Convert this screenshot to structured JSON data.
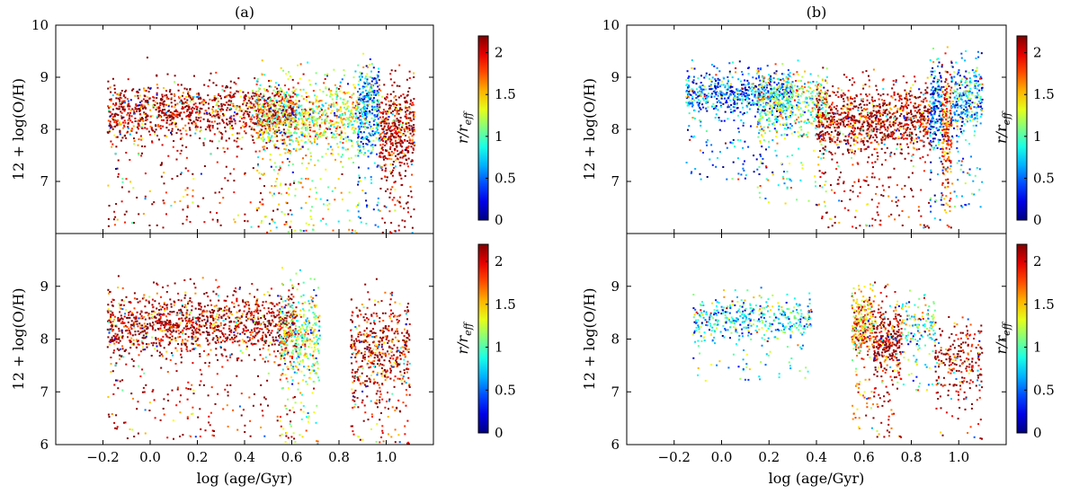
{
  "chart_data": [
    {
      "type": "scatter",
      "panel": "a-top",
      "title": "(a)",
      "xlabel": "",
      "ylabel": "12 + log(O/H)",
      "xlim": [
        -0.4,
        1.2
      ],
      "ylim": [
        6.0,
        10.0
      ],
      "yticks": [
        "7",
        "8",
        "9",
        "10"
      ],
      "xticks": [],
      "colorbar": {
        "label_main": "r/r",
        "label_sub": "eff",
        "range": [
          0,
          2.2
        ],
        "ticks": [
          "0",
          "0.5",
          "1",
          "1.5",
          "2"
        ]
      },
      "clusters": [
        {
          "x_range": [
            -0.18,
            0.62
          ],
          "y_center": 8.35,
          "y_spread": 0.45,
          "tail_low": 6.1,
          "color_value": 2.1,
          "density": 1300
        },
        {
          "x_range": [
            0.45,
            0.88
          ],
          "y_center": 8.25,
          "y_spread": 0.6,
          "tail_low": 6.0,
          "color_value": 1.3,
          "density": 900
        },
        {
          "x_range": [
            0.88,
            0.97
          ],
          "y_center": 8.4,
          "y_spread": 0.7,
          "tail_low": 6.1,
          "color_value": 0.6,
          "density": 350
        },
        {
          "x_range": [
            0.97,
            1.12
          ],
          "y_center": 8.0,
          "y_spread": 0.75,
          "tail_low": 6.0,
          "color_value": 2.1,
          "density": 500
        }
      ]
    },
    {
      "type": "scatter",
      "panel": "b-top",
      "title": "(b)",
      "xlabel": "",
      "ylabel": "12 + log(O/H)",
      "xlim": [
        -0.4,
        1.2
      ],
      "ylim": [
        6.0,
        10.0
      ],
      "yticks": [
        "7",
        "8",
        "9",
        "10"
      ],
      "xticks": [],
      "colorbar": {
        "label_main": "r/r",
        "label_sub": "eff",
        "range": [
          0,
          2.2
        ],
        "ticks": [
          "0",
          "0.5",
          "1",
          "1.5",
          "2"
        ]
      },
      "clusters": [
        {
          "x_range": [
            -0.15,
            0.3
          ],
          "y_center": 8.7,
          "y_spread": 0.35,
          "tail_low": 7.0,
          "color_value": 0.5,
          "density": 700
        },
        {
          "x_range": [
            0.15,
            0.45
          ],
          "y_center": 8.5,
          "y_spread": 0.5,
          "tail_low": 6.5,
          "color_value": 1.1,
          "density": 500
        },
        {
          "x_range": [
            0.4,
            0.88
          ],
          "y_center": 8.2,
          "y_spread": 0.55,
          "tail_low": 6.1,
          "color_value": 2.1,
          "density": 1100
        },
        {
          "x_range": [
            0.88,
            0.93
          ],
          "y_center": 8.5,
          "y_spread": 0.7,
          "tail_low": 6.2,
          "color_value": 0.4,
          "density": 200
        },
        {
          "x_range": [
            0.93,
            0.97
          ],
          "y_center": 8.1,
          "y_spread": 0.9,
          "tail_low": 6.0,
          "color_value": 1.8,
          "density": 220
        },
        {
          "x_range": [
            0.97,
            1.1
          ],
          "y_center": 8.6,
          "y_spread": 0.6,
          "tail_low": 6.5,
          "color_value": 0.6,
          "density": 300
        }
      ]
    },
    {
      "type": "scatter",
      "panel": "a-bottom",
      "title": "",
      "xlabel": "log (age/Gyr)",
      "ylabel": "12 + log(O/H)",
      "xlim": [
        -0.4,
        1.2
      ],
      "ylim": [
        6.0,
        10.0
      ],
      "yticks": [
        "6",
        "7",
        "8",
        "9"
      ],
      "xticks": [
        "−0.2",
        "0.0",
        "0.2",
        "0.4",
        "0.6",
        "0.8",
        "1.0"
      ],
      "colorbar": {
        "label_main": "r/r",
        "label_sub": "eff",
        "range": [
          0,
          2.2
        ],
        "ticks": [
          "0",
          "0.5",
          "1",
          "1.5",
          "2"
        ]
      },
      "clusters": [
        {
          "x_range": [
            -0.18,
            0.62
          ],
          "y_center": 8.3,
          "y_spread": 0.5,
          "tail_low": 6.1,
          "color_value": 2.1,
          "density": 1400
        },
        {
          "x_range": [
            0.55,
            0.72
          ],
          "y_center": 8.1,
          "y_spread": 0.7,
          "tail_low": 6.0,
          "color_value": 1.2,
          "density": 400
        },
        {
          "x_range": [
            0.85,
            1.1
          ],
          "y_center": 7.8,
          "y_spread": 0.8,
          "tail_low": 6.0,
          "color_value": 2.0,
          "density": 550
        }
      ]
    },
    {
      "type": "scatter",
      "panel": "b-bottom",
      "title": "",
      "xlabel": "log (age/Gyr)",
      "ylabel": "12 + log(O/H)",
      "xlim": [
        -0.4,
        1.2
      ],
      "ylim": [
        6.0,
        10.0
      ],
      "yticks": [
        "6",
        "7",
        "8",
        "9"
      ],
      "xticks": [
        "−0.2",
        "0.0",
        "0.2",
        "0.4",
        "0.6",
        "0.8",
        "1.0"
      ],
      "colorbar": {
        "label_main": "r/r",
        "label_sub": "eff",
        "range": [
          0,
          2.2
        ],
        "ticks": [
          "0",
          "0.5",
          "1",
          "1.5",
          "2"
        ]
      },
      "clusters": [
        {
          "x_range": [
            -0.12,
            0.38
          ],
          "y_center": 8.4,
          "y_spread": 0.35,
          "tail_low": 7.2,
          "color_value": 0.8,
          "density": 450
        },
        {
          "x_range": [
            0.55,
            0.64
          ],
          "y_center": 8.3,
          "y_spread": 0.5,
          "tail_low": 6.3,
          "color_value": 1.6,
          "density": 300
        },
        {
          "x_range": [
            0.64,
            0.76
          ],
          "y_center": 8.0,
          "y_spread": 0.6,
          "tail_low": 6.1,
          "color_value": 2.1,
          "density": 350
        },
        {
          "x_range": [
            0.76,
            0.9
          ],
          "y_center": 8.3,
          "y_spread": 0.4,
          "tail_low": 7.0,
          "color_value": 1.0,
          "density": 150
        },
        {
          "x_range": [
            0.9,
            1.1
          ],
          "y_center": 7.6,
          "y_spread": 0.6,
          "tail_low": 6.1,
          "color_value": 2.1,
          "density": 250
        }
      ]
    }
  ]
}
